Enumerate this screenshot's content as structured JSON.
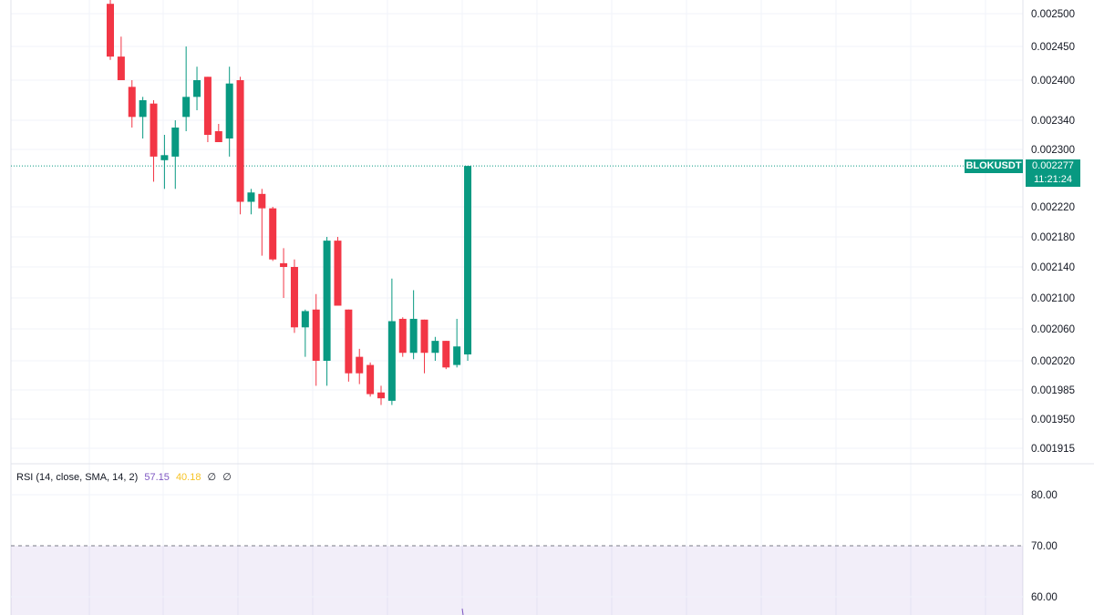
{
  "chart_data": {
    "type": "candlestick",
    "symbol": "BLOKUSDT",
    "last_price": "0.002277",
    "countdown": "11:21:24",
    "price_ticks": [
      "0.002500",
      "0.002450",
      "0.002400",
      "0.002340",
      "0.002300",
      "0.002220",
      "0.002180",
      "0.002140",
      "0.002100",
      "0.002060",
      "0.002020",
      "0.001985",
      "0.001950",
      "0.001915"
    ],
    "candles": [
      {
        "o": 0.002515,
        "h": 0.00253,
        "l": 0.00243,
        "c": 0.002435
      },
      {
        "o": 0.002435,
        "h": 0.002465,
        "l": 0.0024,
        "c": 0.0024
      },
      {
        "o": 0.00239,
        "h": 0.0024,
        "l": 0.00233,
        "c": 0.002345
      },
      {
        "o": 0.002345,
        "h": 0.002375,
        "l": 0.002315,
        "c": 0.00237
      },
      {
        "o": 0.002365,
        "h": 0.00237,
        "l": 0.002255,
        "c": 0.00229
      },
      {
        "o": 0.002285,
        "h": 0.00232,
        "l": 0.002245,
        "c": 0.002292
      },
      {
        "o": 0.00229,
        "h": 0.00234,
        "l": 0.002245,
        "c": 0.00233
      },
      {
        "o": 0.002345,
        "h": 0.00245,
        "l": 0.002325,
        "c": 0.002375
      },
      {
        "o": 0.002375,
        "h": 0.00242,
        "l": 0.002355,
        "c": 0.0024
      },
      {
        "o": 0.002405,
        "h": 0.002405,
        "l": 0.00231,
        "c": 0.00232
      },
      {
        "o": 0.002325,
        "h": 0.002335,
        "l": 0.00231,
        "c": 0.00231
      },
      {
        "o": 0.002315,
        "h": 0.00242,
        "l": 0.00229,
        "c": 0.002395
      },
      {
        "o": 0.0024,
        "h": 0.002405,
        "l": 0.00221,
        "c": 0.002227
      },
      {
        "o": 0.002227,
        "h": 0.002245,
        "l": 0.00221,
        "c": 0.00224
      },
      {
        "o": 0.002238,
        "h": 0.002245,
        "l": 0.002155,
        "c": 0.002218
      },
      {
        "o": 0.002218,
        "h": 0.00222,
        "l": 0.002148,
        "c": 0.00215
      },
      {
        "o": 0.002145,
        "h": 0.002165,
        "l": 0.0021,
        "c": 0.00214
      },
      {
        "o": 0.00214,
        "h": 0.00215,
        "l": 0.002055,
        "c": 0.002062
      },
      {
        "o": 0.002062,
        "h": 0.002085,
        "l": 0.002025,
        "c": 0.002083
      },
      {
        "o": 0.002085,
        "h": 0.002105,
        "l": 0.00199,
        "c": 0.00202
      },
      {
        "o": 0.00202,
        "h": 0.00218,
        "l": 0.00199,
        "c": 0.002175
      },
      {
        "o": 0.002175,
        "h": 0.00218,
        "l": 0.00209,
        "c": 0.00209
      },
      {
        "o": 0.002085,
        "h": 0.002085,
        "l": 0.001995,
        "c": 0.002005
      },
      {
        "o": 0.002025,
        "h": 0.002035,
        "l": 0.001992,
        "c": 0.002005
      },
      {
        "o": 0.002015,
        "h": 0.002018,
        "l": 0.001977,
        "c": 0.00198
      },
      {
        "o": 0.001982,
        "h": 0.00199,
        "l": 0.001967,
        "c": 0.001975
      },
      {
        "o": 0.001972,
        "h": 0.002125,
        "l": 0.001967,
        "c": 0.00207
      },
      {
        "o": 0.002073,
        "h": 0.002075,
        "l": 0.002025,
        "c": 0.00203
      },
      {
        "o": 0.00203,
        "h": 0.00211,
        "l": 0.002022,
        "c": 0.002073
      },
      {
        "o": 0.002072,
        "h": 0.002072,
        "l": 0.002005,
        "c": 0.00203
      },
      {
        "o": 0.00203,
        "h": 0.00205,
        "l": 0.00202,
        "c": 0.002045
      },
      {
        "o": 0.002045,
        "h": 0.002045,
        "l": 0.00201,
        "c": 0.002012
      },
      {
        "o": 0.002015,
        "h": 0.002073,
        "l": 0.002012,
        "c": 0.002038
      },
      {
        "o": 0.002028,
        "h": 0.002277,
        "l": 0.00202,
        "c": 0.002277
      }
    ],
    "rsi": {
      "legend": "RSI (14, close, SMA, 14, 2)",
      "rsi_value": "57.15",
      "sma_value": "40.18",
      "extra1": "∅",
      "extra2": "∅",
      "ticks": [
        "80.00",
        "70.00",
        "60.00"
      ],
      "upper_band": 70
    },
    "colors": {
      "up": "#089981",
      "down": "#f23645",
      "rsi_band": "#7e57c2",
      "rsi_value": "#7e57c2",
      "sma_value": "#f7c325"
    }
  }
}
